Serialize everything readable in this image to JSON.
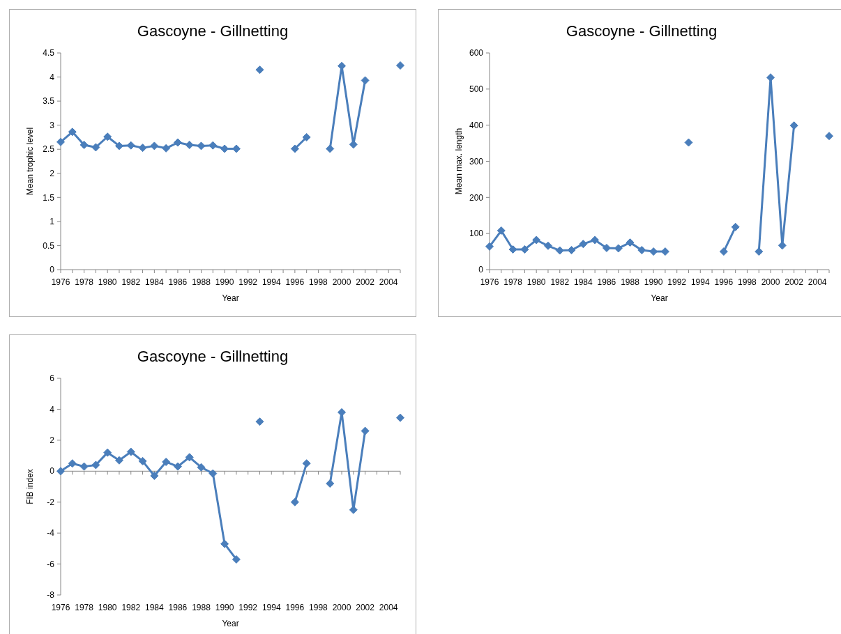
{
  "chart_data": [
    {
      "type": "line",
      "title": "Gascoyne - Gillnetting",
      "xlabel": "Year",
      "ylabel": "Mean trophic level",
      "marker": "diamond",
      "categories": [
        "1976",
        null,
        "1978",
        null,
        "1980",
        null,
        "1982",
        null,
        "1984",
        null,
        "1986",
        null,
        "1988",
        null,
        "1990",
        null,
        "1992",
        null,
        "1994",
        null,
        "1996",
        null,
        "1998",
        null,
        "2000",
        null,
        "2002",
        null,
        "2004",
        null
      ],
      "ylim": [
        0,
        4.5
      ],
      "yticks": [
        0,
        0.5,
        1,
        1.5,
        2,
        2.5,
        3,
        3.5,
        4,
        4.5
      ],
      "series": [
        {
          "color": "#4a7ebb",
          "values": [
            2.65,
            2.86,
            2.59,
            2.54,
            2.76,
            2.57,
            2.58,
            2.53,
            2.57,
            2.52,
            2.64,
            2.59,
            2.57,
            2.58,
            2.51,
            2.51,
            null,
            4.15,
            null,
            null,
            2.51,
            2.75,
            null,
            2.51,
            4.23,
            2.6,
            3.93,
            null,
            null,
            4.24
          ]
        }
      ]
    },
    {
      "type": "line",
      "title": "Gascoyne - Gillnetting",
      "xlabel": "Year",
      "ylabel": "Mean max. length",
      "marker": "diamond",
      "categories": [
        "1976",
        null,
        "1978",
        null,
        "1980",
        null,
        "1982",
        null,
        "1984",
        null,
        "1986",
        null,
        "1988",
        null,
        "1990",
        null,
        "1992",
        null,
        "1994",
        null,
        "1996",
        null,
        "1998",
        null,
        "2000",
        null,
        "2002",
        null,
        "2004",
        null
      ],
      "ylim": [
        0,
        600
      ],
      "yticks": [
        0,
        100,
        200,
        300,
        400,
        500,
        600
      ],
      "series": [
        {
          "color": "#4a7ebb",
          "values": [
            64,
            108,
            56,
            56,
            82,
            66,
            53,
            54,
            71,
            82,
            60,
            59,
            75,
            54,
            50,
            50,
            null,
            352,
            null,
            null,
            50,
            118,
            null,
            50,
            532,
            67,
            399,
            null,
            null,
            370
          ]
        }
      ]
    },
    {
      "type": "line",
      "title": "Gascoyne - Gillnetting",
      "xlabel": "Year",
      "ylabel": "FIB index",
      "marker": "diamond",
      "categories": [
        "1976",
        null,
        "1978",
        null,
        "1980",
        null,
        "1982",
        null,
        "1984",
        null,
        "1986",
        null,
        "1988",
        null,
        "1990",
        null,
        "1992",
        null,
        "1994",
        null,
        "1996",
        null,
        "1998",
        null,
        "2000",
        null,
        "2002",
        null,
        "2004",
        null
      ],
      "ylim": [
        -8,
        6
      ],
      "yticks": [
        -8,
        -6,
        -4,
        -2,
        0,
        2,
        4,
        6
      ],
      "series": [
        {
          "color": "#4a7ebb",
          "values": [
            0,
            0.5,
            0.3,
            0.4,
            1.2,
            0.7,
            1.25,
            0.65,
            -0.3,
            0.6,
            0.3,
            0.9,
            0.25,
            -0.15,
            -4.7,
            -5.7,
            null,
            3.2,
            null,
            null,
            -2,
            0.5,
            null,
            -0.8,
            3.8,
            -2.5,
            2.6,
            null,
            null,
            3.45
          ]
        }
      ]
    }
  ]
}
